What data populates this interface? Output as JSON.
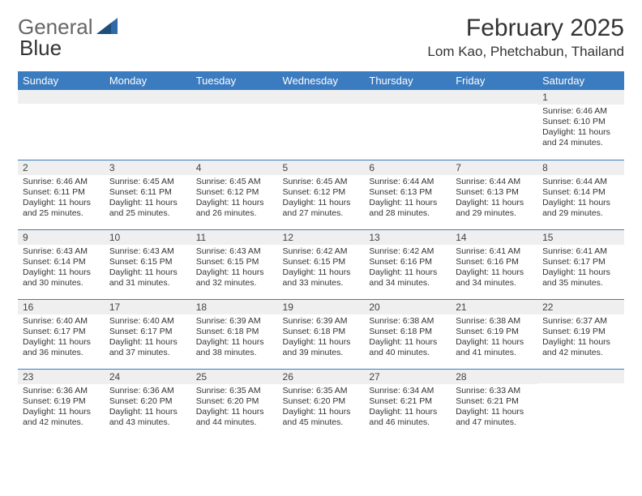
{
  "header": {
    "logo_part1": "General",
    "logo_part2": "Blue",
    "month_title": "February 2025",
    "location": "Lom Kao, Phetchabun, Thailand"
  },
  "colors": {
    "header_bar": "#3b7bbf",
    "header_text": "#ffffff",
    "daynum_bg": "#efefef",
    "border": "#3b7bbf",
    "logo_blue": "#2f6aa8",
    "body_text": "#333333"
  },
  "weekdays": [
    "Sunday",
    "Monday",
    "Tuesday",
    "Wednesday",
    "Thursday",
    "Friday",
    "Saturday"
  ],
  "weeks": [
    [
      {
        "day": "",
        "sunrise": "",
        "sunset": "",
        "daylight": ""
      },
      {
        "day": "",
        "sunrise": "",
        "sunset": "",
        "daylight": ""
      },
      {
        "day": "",
        "sunrise": "",
        "sunset": "",
        "daylight": ""
      },
      {
        "day": "",
        "sunrise": "",
        "sunset": "",
        "daylight": ""
      },
      {
        "day": "",
        "sunrise": "",
        "sunset": "",
        "daylight": ""
      },
      {
        "day": "",
        "sunrise": "",
        "sunset": "",
        "daylight": ""
      },
      {
        "day": "1",
        "sunrise": "Sunrise: 6:46 AM",
        "sunset": "Sunset: 6:10 PM",
        "daylight": "Daylight: 11 hours and 24 minutes."
      }
    ],
    [
      {
        "day": "2",
        "sunrise": "Sunrise: 6:46 AM",
        "sunset": "Sunset: 6:11 PM",
        "daylight": "Daylight: 11 hours and 25 minutes."
      },
      {
        "day": "3",
        "sunrise": "Sunrise: 6:45 AM",
        "sunset": "Sunset: 6:11 PM",
        "daylight": "Daylight: 11 hours and 25 minutes."
      },
      {
        "day": "4",
        "sunrise": "Sunrise: 6:45 AM",
        "sunset": "Sunset: 6:12 PM",
        "daylight": "Daylight: 11 hours and 26 minutes."
      },
      {
        "day": "5",
        "sunrise": "Sunrise: 6:45 AM",
        "sunset": "Sunset: 6:12 PM",
        "daylight": "Daylight: 11 hours and 27 minutes."
      },
      {
        "day": "6",
        "sunrise": "Sunrise: 6:44 AM",
        "sunset": "Sunset: 6:13 PM",
        "daylight": "Daylight: 11 hours and 28 minutes."
      },
      {
        "day": "7",
        "sunrise": "Sunrise: 6:44 AM",
        "sunset": "Sunset: 6:13 PM",
        "daylight": "Daylight: 11 hours and 29 minutes."
      },
      {
        "day": "8",
        "sunrise": "Sunrise: 6:44 AM",
        "sunset": "Sunset: 6:14 PM",
        "daylight": "Daylight: 11 hours and 29 minutes."
      }
    ],
    [
      {
        "day": "9",
        "sunrise": "Sunrise: 6:43 AM",
        "sunset": "Sunset: 6:14 PM",
        "daylight": "Daylight: 11 hours and 30 minutes."
      },
      {
        "day": "10",
        "sunrise": "Sunrise: 6:43 AM",
        "sunset": "Sunset: 6:15 PM",
        "daylight": "Daylight: 11 hours and 31 minutes."
      },
      {
        "day": "11",
        "sunrise": "Sunrise: 6:43 AM",
        "sunset": "Sunset: 6:15 PM",
        "daylight": "Daylight: 11 hours and 32 minutes."
      },
      {
        "day": "12",
        "sunrise": "Sunrise: 6:42 AM",
        "sunset": "Sunset: 6:15 PM",
        "daylight": "Daylight: 11 hours and 33 minutes."
      },
      {
        "day": "13",
        "sunrise": "Sunrise: 6:42 AM",
        "sunset": "Sunset: 6:16 PM",
        "daylight": "Daylight: 11 hours and 34 minutes."
      },
      {
        "day": "14",
        "sunrise": "Sunrise: 6:41 AM",
        "sunset": "Sunset: 6:16 PM",
        "daylight": "Daylight: 11 hours and 34 minutes."
      },
      {
        "day": "15",
        "sunrise": "Sunrise: 6:41 AM",
        "sunset": "Sunset: 6:17 PM",
        "daylight": "Daylight: 11 hours and 35 minutes."
      }
    ],
    [
      {
        "day": "16",
        "sunrise": "Sunrise: 6:40 AM",
        "sunset": "Sunset: 6:17 PM",
        "daylight": "Daylight: 11 hours and 36 minutes."
      },
      {
        "day": "17",
        "sunrise": "Sunrise: 6:40 AM",
        "sunset": "Sunset: 6:17 PM",
        "daylight": "Daylight: 11 hours and 37 minutes."
      },
      {
        "day": "18",
        "sunrise": "Sunrise: 6:39 AM",
        "sunset": "Sunset: 6:18 PM",
        "daylight": "Daylight: 11 hours and 38 minutes."
      },
      {
        "day": "19",
        "sunrise": "Sunrise: 6:39 AM",
        "sunset": "Sunset: 6:18 PM",
        "daylight": "Daylight: 11 hours and 39 minutes."
      },
      {
        "day": "20",
        "sunrise": "Sunrise: 6:38 AM",
        "sunset": "Sunset: 6:18 PM",
        "daylight": "Daylight: 11 hours and 40 minutes."
      },
      {
        "day": "21",
        "sunrise": "Sunrise: 6:38 AM",
        "sunset": "Sunset: 6:19 PM",
        "daylight": "Daylight: 11 hours and 41 minutes."
      },
      {
        "day": "22",
        "sunrise": "Sunrise: 6:37 AM",
        "sunset": "Sunset: 6:19 PM",
        "daylight": "Daylight: 11 hours and 42 minutes."
      }
    ],
    [
      {
        "day": "23",
        "sunrise": "Sunrise: 6:36 AM",
        "sunset": "Sunset: 6:19 PM",
        "daylight": "Daylight: 11 hours and 42 minutes."
      },
      {
        "day": "24",
        "sunrise": "Sunrise: 6:36 AM",
        "sunset": "Sunset: 6:20 PM",
        "daylight": "Daylight: 11 hours and 43 minutes."
      },
      {
        "day": "25",
        "sunrise": "Sunrise: 6:35 AM",
        "sunset": "Sunset: 6:20 PM",
        "daylight": "Daylight: 11 hours and 44 minutes."
      },
      {
        "day": "26",
        "sunrise": "Sunrise: 6:35 AM",
        "sunset": "Sunset: 6:20 PM",
        "daylight": "Daylight: 11 hours and 45 minutes."
      },
      {
        "day": "27",
        "sunrise": "Sunrise: 6:34 AM",
        "sunset": "Sunset: 6:21 PM",
        "daylight": "Daylight: 11 hours and 46 minutes."
      },
      {
        "day": "28",
        "sunrise": "Sunrise: 6:33 AM",
        "sunset": "Sunset: 6:21 PM",
        "daylight": "Daylight: 11 hours and 47 minutes."
      },
      {
        "day": "",
        "sunrise": "",
        "sunset": "",
        "daylight": ""
      }
    ]
  ]
}
